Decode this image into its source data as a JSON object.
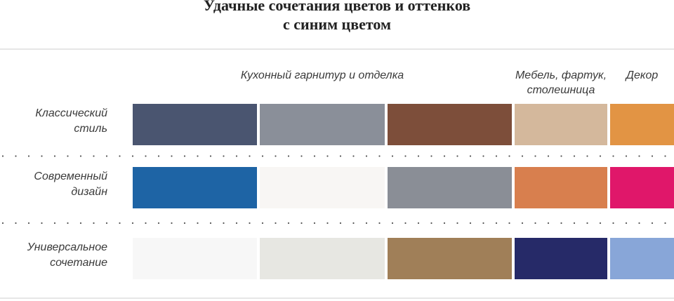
{
  "title": [
    "Удачные сочетания цветов и оттенков",
    "с синим цветом"
  ],
  "columns": [
    {
      "lines": [
        "Кухонный гарнитур и отделка"
      ],
      "span": [
        0,
        1,
        2
      ]
    },
    {
      "lines": [
        "Мебель, фартук,",
        "столешница"
      ],
      "span": [
        3
      ]
    },
    {
      "lines": [
        "Декор"
      ],
      "span": [
        4
      ]
    }
  ],
  "rows": [
    {
      "lines": [
        "Классический",
        "стиль"
      ],
      "colors": [
        "#4a5570",
        "#8a8f99",
        "#7d4e3a",
        "#d4b89c",
        "#e29444"
      ]
    },
    {
      "lines": [
        "Современный",
        "дизайн"
      ],
      "colors": [
        "#1e64a5",
        "#f8f6f4",
        "#8a8e96",
        "#d87f4e",
        "#e0176a"
      ]
    },
    {
      "lines": [
        "Универсальное",
        "сочетание"
      ],
      "colors": [
        "#f7f7f7",
        "#e7e7e2",
        "#a07f58",
        "#262a68",
        "#88a6d8"
      ]
    }
  ]
}
